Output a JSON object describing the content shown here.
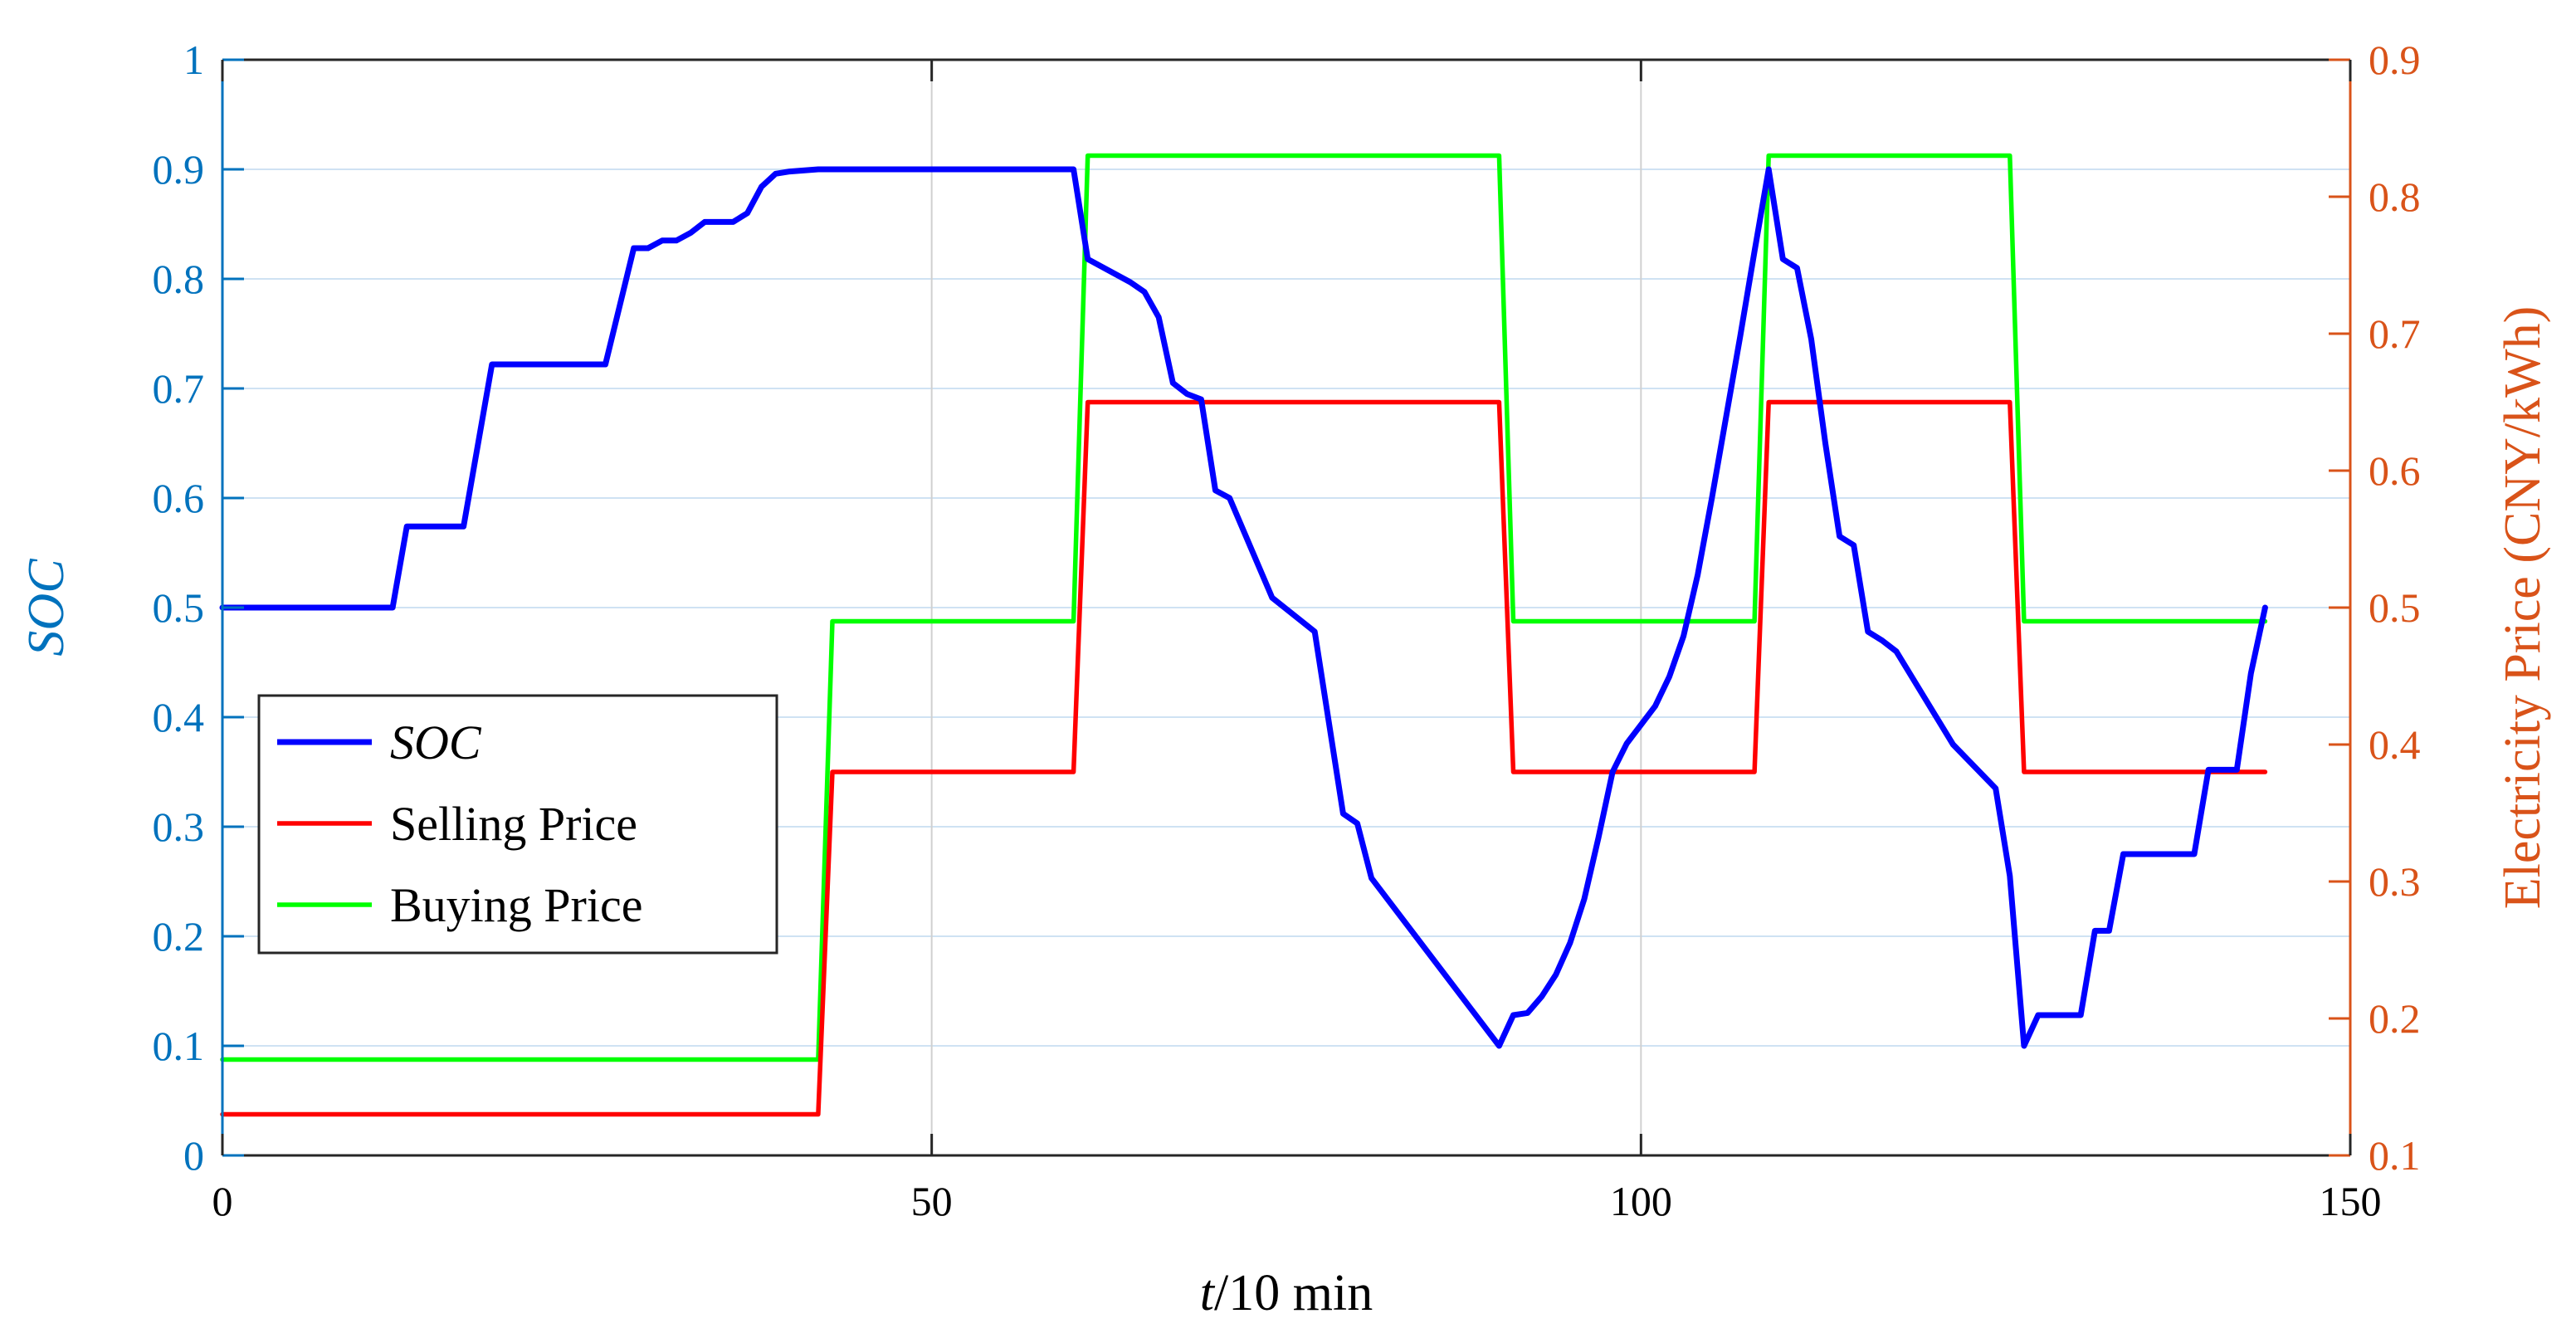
{
  "colors": {
    "left_axis": "#0072bd",
    "right_axis": "#d95319",
    "soc": "#0000ff",
    "selling": "#ff0000",
    "buying": "#00ff00",
    "grid_h": "#cfe2f3",
    "grid_v": "#d0d0d0"
  },
  "chart_data": {
    "type": "line",
    "title": "",
    "xlabel_italic": "t",
    "xlabel_rest": "/10 min",
    "ylabel_left": "SOC",
    "ylabel_right": "Electricity Price (CNY/kWh)",
    "xlim": [
      0,
      150
    ],
    "ylim_left": [
      0,
      1
    ],
    "ylim_right": [
      0.1,
      0.9
    ],
    "x_ticks": [
      "0",
      "50",
      "100",
      "150"
    ],
    "y_left_ticks": [
      "0",
      "0.1",
      "0.2",
      "0.3",
      "0.4",
      "0.5",
      "0.6",
      "0.7",
      "0.8",
      "0.9",
      "1"
    ],
    "y_right_ticks": [
      "0.1",
      "0.2",
      "0.3",
      "0.4",
      "0.5",
      "0.6",
      "0.7",
      "0.8",
      "0.9"
    ],
    "grid": "on",
    "legend_placement": "left",
    "series": [
      {
        "name": "SOC",
        "axis": "left",
        "x": [
          0,
          12,
          13,
          17,
          19,
          27,
          29,
          30,
          31,
          32,
          33,
          34,
          35,
          36,
          37,
          38,
          39,
          40,
          42,
          60,
          61,
          64,
          65,
          66,
          67,
          68,
          69,
          70,
          71,
          74,
          77,
          78,
          79,
          80,
          81,
          90,
          91,
          92,
          93,
          94,
          95,
          96,
          97,
          98,
          99,
          100,
          101,
          102,
          103,
          104,
          105,
          106,
          107,
          108,
          109,
          110,
          111,
          112,
          113,
          114,
          115,
          116,
          117,
          118,
          122,
          125,
          126,
          127,
          128,
          129,
          130,
          131,
          132,
          133,
          134,
          135,
          136,
          137,
          138,
          139,
          140,
          141,
          142,
          143,
          144
        ],
        "y": [
          0.5,
          0.5,
          0.574,
          0.574,
          0.722,
          0.722,
          0.828,
          0.828,
          0.835,
          0.835,
          0.842,
          0.852,
          0.852,
          0.852,
          0.86,
          0.884,
          0.896,
          0.898,
          0.9,
          0.9,
          0.818,
          0.797,
          0.788,
          0.765,
          0.705,
          0.695,
          0.69,
          0.607,
          0.6,
          0.509,
          0.478,
          0.395,
          0.312,
          0.303,
          0.253,
          0.1,
          0.128,
          0.13,
          0.145,
          0.165,
          0.194,
          0.234,
          0.29,
          0.35,
          0.376,
          0.393,
          0.41,
          0.437,
          0.474,
          0.53,
          0.6,
          0.674,
          0.748,
          0.825,
          0.9,
          0.818,
          0.81,
          0.745,
          0.65,
          0.565,
          0.557,
          0.478,
          0.47,
          0.46,
          0.375,
          0.335,
          0.255,
          0.1,
          0.128,
          0.128,
          0.128,
          0.128,
          0.205,
          0.205,
          0.275,
          0.275,
          0.275,
          0.275,
          0.275,
          0.275,
          0.352,
          0.352,
          0.352,
          0.44,
          0.5
        ]
      },
      {
        "name": "Selling Price",
        "axis": "right",
        "x": [
          0,
          42,
          43,
          60,
          61,
          90,
          91,
          108,
          109,
          126,
          127,
          144
        ],
        "y": [
          0.13,
          0.13,
          0.38,
          0.38,
          0.65,
          0.65,
          0.38,
          0.38,
          0.65,
          0.65,
          0.38,
          0.38
        ]
      },
      {
        "name": "Buying Price",
        "axis": "right",
        "x": [
          0,
          42,
          43,
          60,
          61,
          90,
          91,
          108,
          109,
          126,
          127,
          144
        ],
        "y": [
          0.17,
          0.17,
          0.49,
          0.49,
          0.83,
          0.83,
          0.49,
          0.49,
          0.83,
          0.83,
          0.49,
          0.49
        ]
      }
    ]
  }
}
